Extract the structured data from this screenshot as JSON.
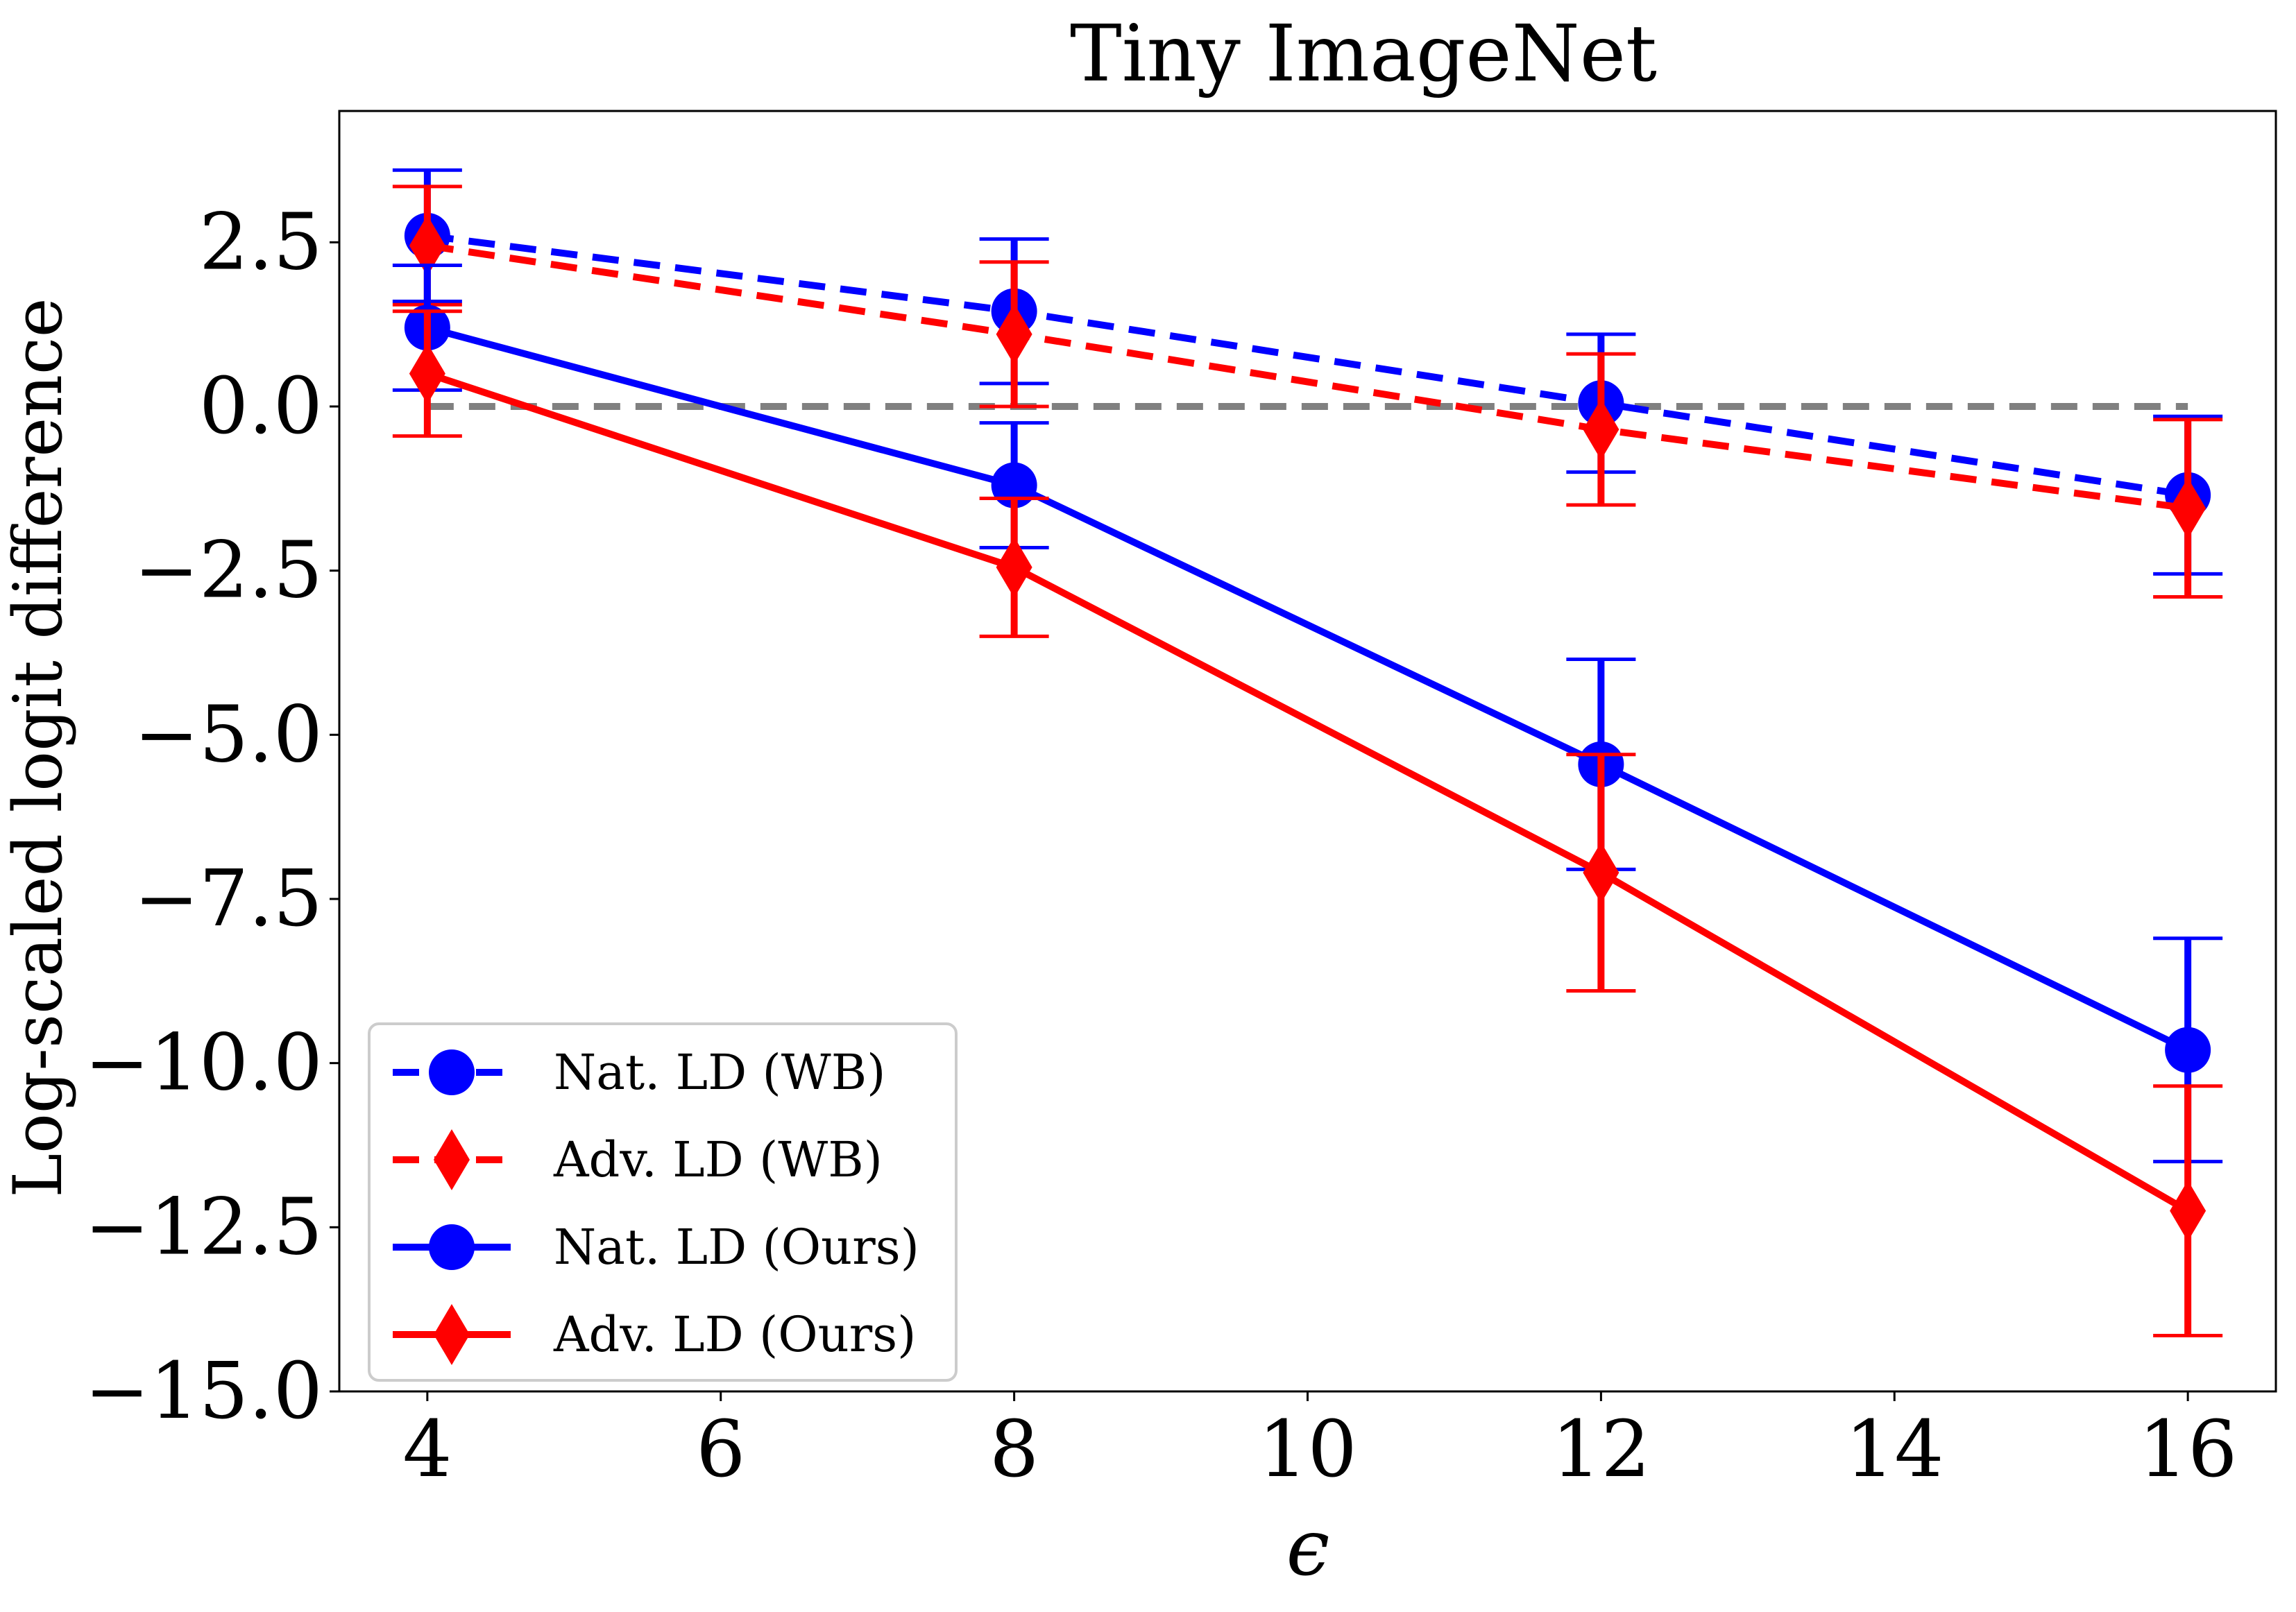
{
  "chart_data": {
    "type": "line",
    "title": "Tiny ImageNet",
    "xlabel": "ϵ",
    "ylabel": "Log-scaled logit difference",
    "xlim": [
      3.4,
      16.6
    ],
    "ylim": [
      -15.0,
      4.5
    ],
    "x_ticks": [
      4,
      6,
      8,
      10,
      12,
      14,
      16
    ],
    "x_tick_labels": [
      "4",
      "6",
      "8",
      "10",
      "12",
      "14",
      "16"
    ],
    "y_ticks": [
      2.5,
      0.0,
      -2.5,
      -5.0,
      -7.5,
      -10.0,
      -12.5,
      -15.0
    ],
    "y_tick_labels": [
      "2.5",
      "0.0",
      "−2.5",
      "−5.0",
      "−7.5",
      "−10.0",
      "−12.5",
      "−15.0"
    ],
    "grid": false,
    "legend_position": "lower-left",
    "reference_line": {
      "y": 0.0,
      "x_range": [
        4,
        16
      ],
      "color": "#808080",
      "style": "dashed"
    },
    "x": [
      4,
      8,
      12,
      16
    ],
    "series": [
      {
        "name": "Nat. LD (WB)",
        "color": "#0000ff",
        "line_style": "dashed",
        "marker": "circle",
        "values": [
          2.6,
          1.45,
          0.05,
          -1.35
        ],
        "errors": [
          1.0,
          1.1,
          1.05,
          1.2
        ]
      },
      {
        "name": "Adv. LD (WB)",
        "color": "#ff0000",
        "line_style": "dashed",
        "marker": "diamond",
        "values": [
          2.45,
          1.1,
          -0.35,
          -1.55
        ],
        "errors": [
          0.9,
          1.1,
          1.15,
          1.35
        ]
      },
      {
        "name": "Nat. LD (Ours)",
        "color": "#0000ff",
        "line_style": "solid",
        "marker": "circle",
        "values": [
          1.2,
          -1.2,
          -5.45,
          -9.8
        ],
        "errors": [
          0.95,
          0.95,
          1.6,
          1.7
        ]
      },
      {
        "name": "Adv. LD (Ours)",
        "color": "#ff0000",
        "line_style": "solid",
        "marker": "diamond",
        "values": [
          0.5,
          -2.45,
          -7.1,
          -12.25
        ],
        "errors": [
          0.95,
          1.05,
          1.8,
          1.9
        ]
      }
    ]
  }
}
